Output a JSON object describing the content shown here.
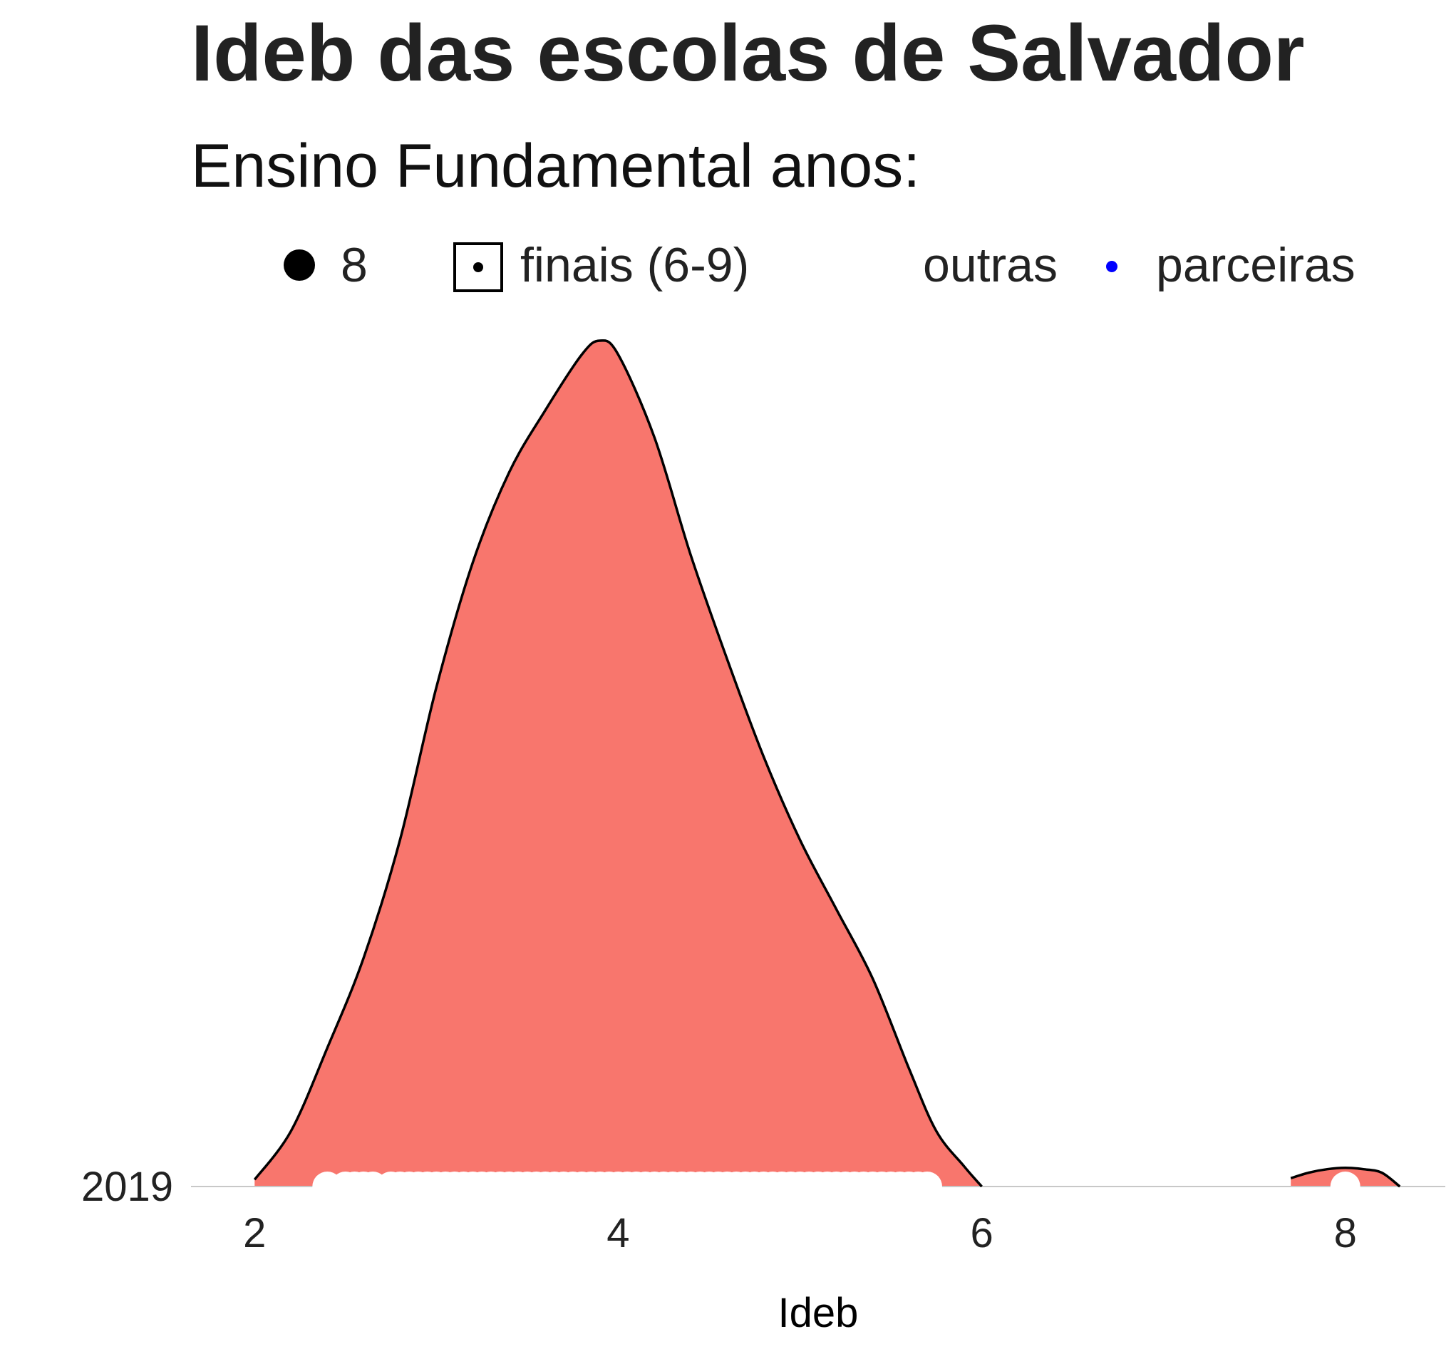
{
  "title": "Ideb das escolas de Salvador",
  "subtitle": "Ensino Fundamental anos:",
  "legend": {
    "size_label": "8",
    "fill_label": "finais (6-9)",
    "color_outras": "outras",
    "color_parceiras": "parceiras"
  },
  "colors": {
    "fill": "#F8766D",
    "outline": "#000000",
    "points": "#FFFFFF",
    "parceiras": "#0000FF",
    "baseline": "#C8C8C8"
  },
  "chart_data": {
    "type": "area",
    "title": "Ideb das escolas de Salvador",
    "subtitle": "Ensino Fundamental anos:",
    "xlabel": "Ideb",
    "ylabel": "",
    "xlim": [
      1.65,
      8.55
    ],
    "x_ticks": [
      "2",
      "4",
      "6",
      "8"
    ],
    "y_categories": [
      "2019"
    ],
    "grid": false,
    "legend_position": "top",
    "series": [
      {
        "category": "2019",
        "x": [
          2.0,
          2.2,
          2.4,
          2.6,
          2.8,
          3.0,
          3.2,
          3.4,
          3.6,
          3.8,
          3.9,
          4.0,
          4.2,
          4.4,
          4.6,
          4.8,
          5.0,
          5.2,
          5.4,
          5.6,
          5.75,
          5.9,
          6.0,
          7.6,
          7.7,
          7.8,
          7.9,
          8.0,
          8.1,
          8.2,
          8.3
        ],
        "density": [
          0.01,
          0.08,
          0.2,
          0.33,
          0.5,
          0.72,
          0.9,
          1.03,
          1.12,
          1.2,
          1.22,
          1.2,
          1.08,
          0.91,
          0.76,
          0.62,
          0.5,
          0.4,
          0.3,
          0.17,
          0.08,
          0.03,
          0.0,
          0.0,
          0.012,
          0.02,
          0.025,
          0.027,
          0.025,
          0.02,
          0.0
        ]
      }
    ],
    "points": {
      "group": "outras",
      "x": [
        2.4,
        2.5,
        2.55,
        2.6,
        2.65,
        2.75,
        2.8,
        2.85,
        2.9,
        2.95,
        3.0,
        3.05,
        3.1,
        3.15,
        3.2,
        3.25,
        3.3,
        3.35,
        3.4,
        3.45,
        3.5,
        3.55,
        3.6,
        3.65,
        3.7,
        3.75,
        3.8,
        3.85,
        3.9,
        3.95,
        4.0,
        4.05,
        4.1,
        4.15,
        4.2,
        4.25,
        4.3,
        4.35,
        4.4,
        4.45,
        4.5,
        4.55,
        4.6,
        4.65,
        4.7,
        4.75,
        4.8,
        4.85,
        4.9,
        4.95,
        5.0,
        5.05,
        5.1,
        5.15,
        5.2,
        5.25,
        5.3,
        5.35,
        5.4,
        5.45,
        5.5,
        5.55,
        5.6,
        5.65,
        5.7,
        8.0
      ]
    }
  }
}
